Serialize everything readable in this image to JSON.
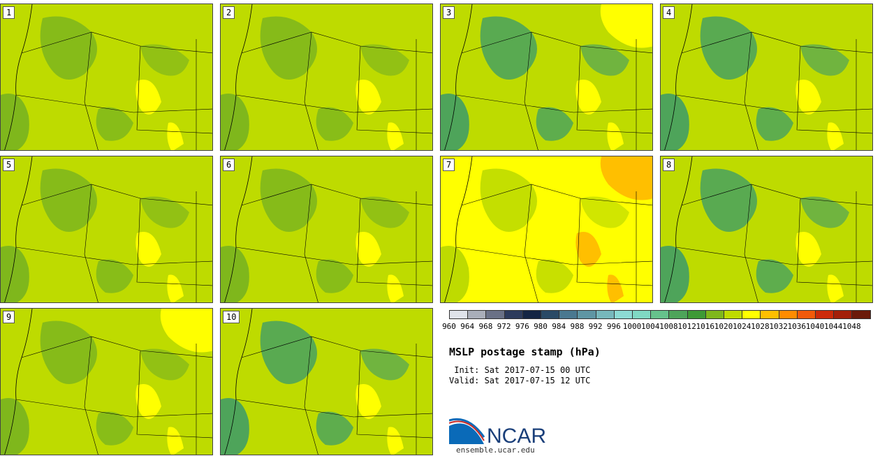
{
  "panels": [
    {
      "label": "1"
    },
    {
      "label": "2"
    },
    {
      "label": "3"
    },
    {
      "label": "4"
    },
    {
      "label": "5"
    },
    {
      "label": "6"
    },
    {
      "label": "7"
    },
    {
      "label": "8"
    },
    {
      "label": "9"
    },
    {
      "label": "10"
    }
  ],
  "colorbar": {
    "ticks": [
      "960",
      "964",
      "968",
      "972",
      "976",
      "980",
      "984",
      "988",
      "992",
      "996",
      "1000",
      "1004",
      "1008",
      "1012",
      "1016",
      "1020",
      "1024",
      "1028",
      "1032",
      "1036",
      "1040",
      "1044",
      "1048"
    ],
    "colors": [
      "#dfe3ea",
      "#a9aeb9",
      "#6a7186",
      "#2d3b5c",
      "#142544",
      "#2a4a66",
      "#4a7890",
      "#5f96a4",
      "#77b8bc",
      "#8ddbd4",
      "#80d9c4",
      "#66c28c",
      "#4ea45a",
      "#3e9a36",
      "#7fb71c",
      "#bedb00",
      "#ffff00",
      "#ffbf00",
      "#ff8c00",
      "#f25a0a",
      "#cc2a0a",
      "#a31f0a",
      "#6b1a0a"
    ]
  },
  "title": "MSLP postage stamp (hPa)",
  "init": " Init: Sat 2017-07-15 00 UTC",
  "valid": "Valid: Sat 2017-07-15 12 UTC",
  "logo_text": "NCAR",
  "logo_url": "ensemble.ucar.edu"
}
